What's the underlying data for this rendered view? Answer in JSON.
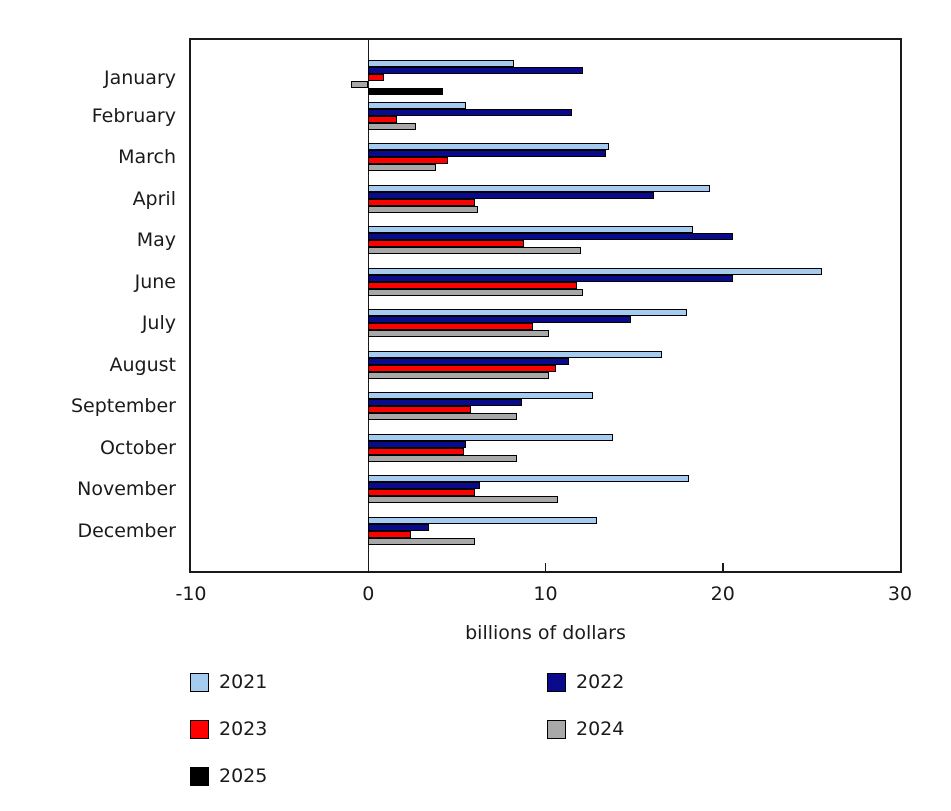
{
  "chart_data": {
    "type": "bar",
    "orientation": "horizontal",
    "title": "",
    "xlabel": "billions of dollars",
    "ylabel": "",
    "xlim": [
      -10,
      30
    ],
    "x_ticks": [
      -10,
      0,
      10,
      20,
      30
    ],
    "grid": false,
    "legend_position": "bottom",
    "categories": [
      "January",
      "February",
      "March",
      "April",
      "May",
      "June",
      "July",
      "August",
      "September",
      "October",
      "November",
      "December"
    ],
    "series": [
      {
        "name": "2021",
        "color": "#a5cbf0",
        "values": [
          8.2,
          5.5,
          13.6,
          19.3,
          18.3,
          25.6,
          18.0,
          16.6,
          12.7,
          13.8,
          18.1,
          12.9
        ]
      },
      {
        "name": "2022",
        "color": "#0a0a8c",
        "values": [
          12.1,
          11.5,
          13.4,
          16.1,
          20.6,
          20.6,
          14.8,
          11.3,
          8.7,
          5.5,
          6.3,
          3.4
        ]
      },
      {
        "name": "2023",
        "color": "#ff0000",
        "values": [
          0.9,
          1.6,
          4.5,
          6.0,
          8.8,
          11.8,
          9.3,
          10.6,
          5.8,
          5.4,
          6.0,
          2.4
        ]
      },
      {
        "name": "2024",
        "color": "#a8a8a8",
        "values": [
          -1.0,
          2.7,
          3.8,
          6.2,
          12.0,
          12.1,
          10.2,
          10.2,
          8.4,
          8.4,
          10.7,
          6.0
        ]
      },
      {
        "name": "2025",
        "color": "#000000",
        "values": [
          4.2,
          null,
          null,
          null,
          null,
          null,
          null,
          null,
          null,
          null,
          null,
          null
        ]
      }
    ],
    "colors": {
      "bar_outline": "#000000",
      "axis": "#1a1a1a",
      "text": "#1a1a1a",
      "background": "#ffffff"
    }
  }
}
